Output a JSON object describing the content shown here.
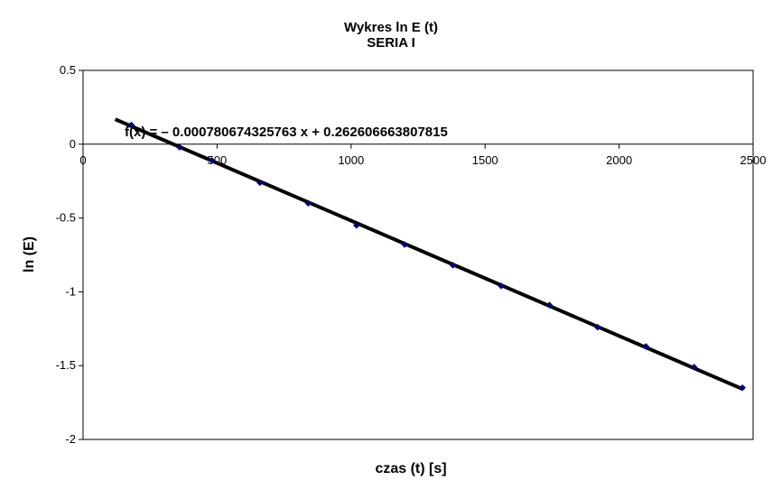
{
  "chart_data": {
    "type": "scatter",
    "title": "Wykres ln E (t)",
    "subtitle": "SERIA I",
    "xlabel": "czas (t) [s]",
    "ylabel": "ln (E)",
    "xlim": [
      0,
      2500
    ],
    "ylim": [
      -2,
      0.5
    ],
    "xticks": [
      0,
      500,
      1000,
      1500,
      2000,
      2500
    ],
    "xtick_labels": [
      "0",
      "500",
      "1000",
      "1500",
      "2000",
      "2500"
    ],
    "yticks": [
      0.5,
      0,
      -0.5,
      -1,
      -1.5,
      -2
    ],
    "ytick_labels": [
      "0.5",
      "0",
      "-0.5",
      "-1",
      "-1.5",
      "-2"
    ],
    "grid": false,
    "legend": "none",
    "trendline": {
      "slope": -0.000780674325763,
      "intercept": 0.262606663807815,
      "x_range": [
        120,
        2460
      ],
      "label": "f(x) = – 0.000780674325763 x + 0.262606663807815"
    },
    "series": [
      {
        "marker": "diamond",
        "color": "#00007f",
        "points": [
          {
            "x": 180,
            "y": 0.13
          },
          {
            "x": 360,
            "y": -0.02
          },
          {
            "x": 480,
            "y": -0.11
          },
          {
            "x": 660,
            "y": -0.26
          },
          {
            "x": 840,
            "y": -0.4
          },
          {
            "x": 1020,
            "y": -0.55
          },
          {
            "x": 1200,
            "y": -0.68
          },
          {
            "x": 1380,
            "y": -0.82
          },
          {
            "x": 1560,
            "y": -0.96
          },
          {
            "x": 1740,
            "y": -1.09
          },
          {
            "x": 1920,
            "y": -1.24
          },
          {
            "x": 2100,
            "y": -1.37
          },
          {
            "x": 2280,
            "y": -1.51
          },
          {
            "x": 2460,
            "y": -1.65
          }
        ]
      }
    ]
  }
}
